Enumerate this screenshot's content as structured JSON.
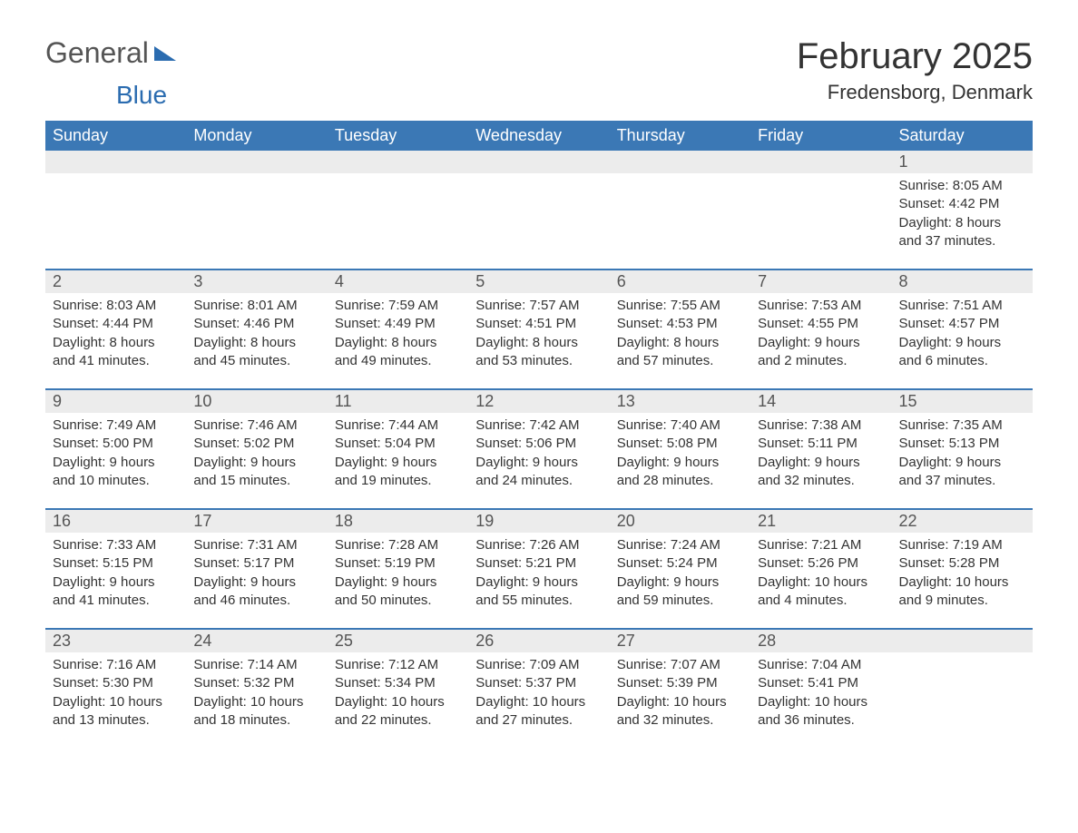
{
  "logo": {
    "text1": "General",
    "text2": "Blue"
  },
  "title": "February 2025",
  "location": "Fredensborg, Denmark",
  "colors": {
    "header_bg": "#3b78b5",
    "header_text": "#ffffff",
    "daynum_bg": "#ececec",
    "accent": "#2b6cb0"
  },
  "calendar": {
    "type": "calendar",
    "columns": [
      "Sunday",
      "Monday",
      "Tuesday",
      "Wednesday",
      "Thursday",
      "Friday",
      "Saturday"
    ],
    "weeks": [
      [
        {
          "day": "",
          "sunrise": "",
          "sunset": "",
          "daylight": ""
        },
        {
          "day": "",
          "sunrise": "",
          "sunset": "",
          "daylight": ""
        },
        {
          "day": "",
          "sunrise": "",
          "sunset": "",
          "daylight": ""
        },
        {
          "day": "",
          "sunrise": "",
          "sunset": "",
          "daylight": ""
        },
        {
          "day": "",
          "sunrise": "",
          "sunset": "",
          "daylight": ""
        },
        {
          "day": "",
          "sunrise": "",
          "sunset": "",
          "daylight": ""
        },
        {
          "day": "1",
          "sunrise": "Sunrise: 8:05 AM",
          "sunset": "Sunset: 4:42 PM",
          "daylight": "Daylight: 8 hours and 37 minutes."
        }
      ],
      [
        {
          "day": "2",
          "sunrise": "Sunrise: 8:03 AM",
          "sunset": "Sunset: 4:44 PM",
          "daylight": "Daylight: 8 hours and 41 minutes."
        },
        {
          "day": "3",
          "sunrise": "Sunrise: 8:01 AM",
          "sunset": "Sunset: 4:46 PM",
          "daylight": "Daylight: 8 hours and 45 minutes."
        },
        {
          "day": "4",
          "sunrise": "Sunrise: 7:59 AM",
          "sunset": "Sunset: 4:49 PM",
          "daylight": "Daylight: 8 hours and 49 minutes."
        },
        {
          "day": "5",
          "sunrise": "Sunrise: 7:57 AM",
          "sunset": "Sunset: 4:51 PM",
          "daylight": "Daylight: 8 hours and 53 minutes."
        },
        {
          "day": "6",
          "sunrise": "Sunrise: 7:55 AM",
          "sunset": "Sunset: 4:53 PM",
          "daylight": "Daylight: 8 hours and 57 minutes."
        },
        {
          "day": "7",
          "sunrise": "Sunrise: 7:53 AM",
          "sunset": "Sunset: 4:55 PM",
          "daylight": "Daylight: 9 hours and 2 minutes."
        },
        {
          "day": "8",
          "sunrise": "Sunrise: 7:51 AM",
          "sunset": "Sunset: 4:57 PM",
          "daylight": "Daylight: 9 hours and 6 minutes."
        }
      ],
      [
        {
          "day": "9",
          "sunrise": "Sunrise: 7:49 AM",
          "sunset": "Sunset: 5:00 PM",
          "daylight": "Daylight: 9 hours and 10 minutes."
        },
        {
          "day": "10",
          "sunrise": "Sunrise: 7:46 AM",
          "sunset": "Sunset: 5:02 PM",
          "daylight": "Daylight: 9 hours and 15 minutes."
        },
        {
          "day": "11",
          "sunrise": "Sunrise: 7:44 AM",
          "sunset": "Sunset: 5:04 PM",
          "daylight": "Daylight: 9 hours and 19 minutes."
        },
        {
          "day": "12",
          "sunrise": "Sunrise: 7:42 AM",
          "sunset": "Sunset: 5:06 PM",
          "daylight": "Daylight: 9 hours and 24 minutes."
        },
        {
          "day": "13",
          "sunrise": "Sunrise: 7:40 AM",
          "sunset": "Sunset: 5:08 PM",
          "daylight": "Daylight: 9 hours and 28 minutes."
        },
        {
          "day": "14",
          "sunrise": "Sunrise: 7:38 AM",
          "sunset": "Sunset: 5:11 PM",
          "daylight": "Daylight: 9 hours and 32 minutes."
        },
        {
          "day": "15",
          "sunrise": "Sunrise: 7:35 AM",
          "sunset": "Sunset: 5:13 PM",
          "daylight": "Daylight: 9 hours and 37 minutes."
        }
      ],
      [
        {
          "day": "16",
          "sunrise": "Sunrise: 7:33 AM",
          "sunset": "Sunset: 5:15 PM",
          "daylight": "Daylight: 9 hours and 41 minutes."
        },
        {
          "day": "17",
          "sunrise": "Sunrise: 7:31 AM",
          "sunset": "Sunset: 5:17 PM",
          "daylight": "Daylight: 9 hours and 46 minutes."
        },
        {
          "day": "18",
          "sunrise": "Sunrise: 7:28 AM",
          "sunset": "Sunset: 5:19 PM",
          "daylight": "Daylight: 9 hours and 50 minutes."
        },
        {
          "day": "19",
          "sunrise": "Sunrise: 7:26 AM",
          "sunset": "Sunset: 5:21 PM",
          "daylight": "Daylight: 9 hours and 55 minutes."
        },
        {
          "day": "20",
          "sunrise": "Sunrise: 7:24 AM",
          "sunset": "Sunset: 5:24 PM",
          "daylight": "Daylight: 9 hours and 59 minutes."
        },
        {
          "day": "21",
          "sunrise": "Sunrise: 7:21 AM",
          "sunset": "Sunset: 5:26 PM",
          "daylight": "Daylight: 10 hours and 4 minutes."
        },
        {
          "day": "22",
          "sunrise": "Sunrise: 7:19 AM",
          "sunset": "Sunset: 5:28 PM",
          "daylight": "Daylight: 10 hours and 9 minutes."
        }
      ],
      [
        {
          "day": "23",
          "sunrise": "Sunrise: 7:16 AM",
          "sunset": "Sunset: 5:30 PM",
          "daylight": "Daylight: 10 hours and 13 minutes."
        },
        {
          "day": "24",
          "sunrise": "Sunrise: 7:14 AM",
          "sunset": "Sunset: 5:32 PM",
          "daylight": "Daylight: 10 hours and 18 minutes."
        },
        {
          "day": "25",
          "sunrise": "Sunrise: 7:12 AM",
          "sunset": "Sunset: 5:34 PM",
          "daylight": "Daylight: 10 hours and 22 minutes."
        },
        {
          "day": "26",
          "sunrise": "Sunrise: 7:09 AM",
          "sunset": "Sunset: 5:37 PM",
          "daylight": "Daylight: 10 hours and 27 minutes."
        },
        {
          "day": "27",
          "sunrise": "Sunrise: 7:07 AM",
          "sunset": "Sunset: 5:39 PM",
          "daylight": "Daylight: 10 hours and 32 minutes."
        },
        {
          "day": "28",
          "sunrise": "Sunrise: 7:04 AM",
          "sunset": "Sunset: 5:41 PM",
          "daylight": "Daylight: 10 hours and 36 minutes."
        },
        {
          "day": "",
          "sunrise": "",
          "sunset": "",
          "daylight": ""
        }
      ]
    ]
  }
}
